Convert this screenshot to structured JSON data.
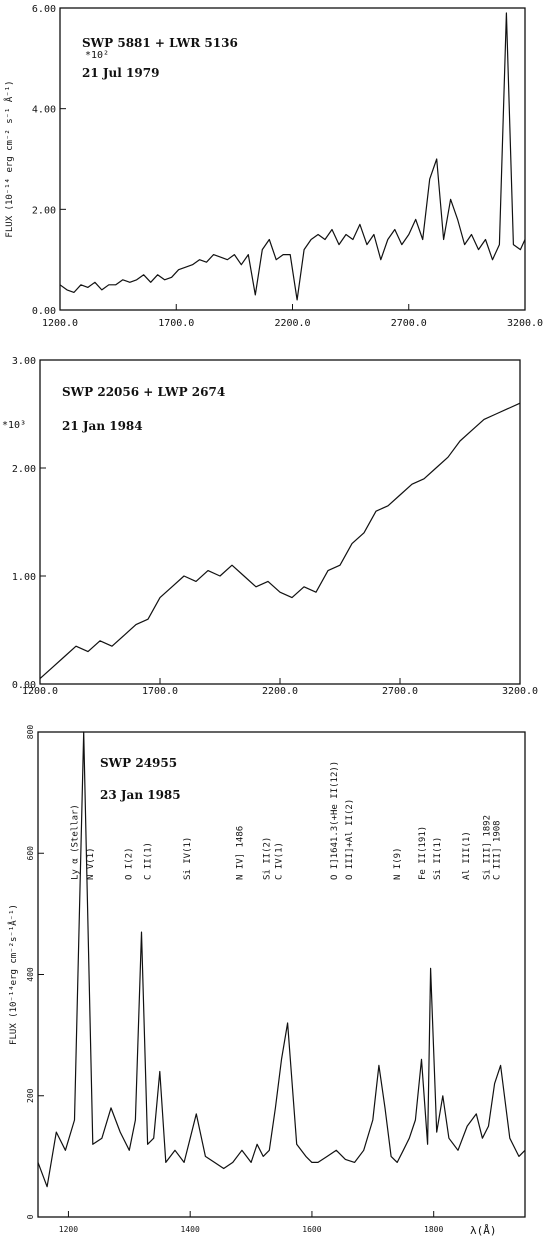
{
  "chart_data": [
    {
      "type": "line",
      "title": "SWP 5881 + LWR 5136",
      "subtitle": "21 Jul 1979",
      "ylabel": "FLUX (10⁻¹⁴ erg cm⁻² s⁻¹ Å⁻¹)",
      "yscale_label": "*10²",
      "xlabel": "",
      "xlim": [
        1200,
        3200
      ],
      "ylim": [
        0,
        6.0
      ],
      "xticks": [
        "1200.0",
        "1700.0",
        "2200.0",
        "2700.0",
        "3200.0"
      ],
      "yticks": [
        "0.00",
        "2.00",
        "4.00",
        "6.00"
      ],
      "x": [
        1200,
        1230,
        1260,
        1290,
        1320,
        1350,
        1380,
        1410,
        1440,
        1470,
        1500,
        1530,
        1560,
        1590,
        1620,
        1650,
        1680,
        1710,
        1740,
        1770,
        1800,
        1830,
        1860,
        1890,
        1920,
        1950,
        1980,
        2010,
        2040,
        2070,
        2100,
        2130,
        2160,
        2190,
        2220,
        2250,
        2280,
        2310,
        2340,
        2370,
        2400,
        2430,
        2460,
        2490,
        2520,
        2550,
        2580,
        2610,
        2640,
        2670,
        2700,
        2730,
        2760,
        2790,
        2820,
        2850,
        2880,
        2910,
        2940,
        2970,
        3000,
        3030,
        3060,
        3090,
        3120,
        3150,
        3180,
        3200
      ],
      "series": [
        {
          "values": [
            0.5,
            0.4,
            0.35,
            0.5,
            0.45,
            0.55,
            0.4,
            0.5,
            0.5,
            0.6,
            0.55,
            0.6,
            0.7,
            0.55,
            0.7,
            0.6,
            0.65,
            0.8,
            0.85,
            0.9,
            1.0,
            0.95,
            1.1,
            1.05,
            1.0,
            1.1,
            0.9,
            1.1,
            0.3,
            1.2,
            1.4,
            1.0,
            1.1,
            1.1,
            0.2,
            1.2,
            1.4,
            1.5,
            1.4,
            1.6,
            1.3,
            1.5,
            1.4,
            1.7,
            1.3,
            1.5,
            1.0,
            1.4,
            1.6,
            1.3,
            1.5,
            1.8,
            1.4,
            2.6,
            3.0,
            1.4,
            2.2,
            1.8,
            1.3,
            1.5,
            1.2,
            1.4,
            1.0,
            1.3,
            5.9,
            1.3,
            1.2,
            1.4
          ]
        }
      ],
      "grid": false
    },
    {
      "type": "line",
      "title": "SWP 22056 + LWP 2674",
      "subtitle": "21 Jan 1984",
      "ylabel": "",
      "yscale_label": "*10³",
      "xlabel": "",
      "xlim": [
        1200,
        3200
      ],
      "ylim": [
        0,
        3.0
      ],
      "xticks": [
        "1200.0",
        "1700.0",
        "2200.0",
        "2700.0",
        "3200.0"
      ],
      "yticks": [
        "0.00",
        "1.00",
        "2.00",
        "3.00"
      ],
      "x": [
        1200,
        1250,
        1300,
        1350,
        1400,
        1450,
        1500,
        1550,
        1600,
        1650,
        1700,
        1750,
        1800,
        1850,
        1900,
        1950,
        2000,
        2050,
        2100,
        2150,
        2200,
        2250,
        2300,
        2350,
        2400,
        2450,
        2500,
        2550,
        2600,
        2650,
        2700,
        2750,
        2800,
        2850,
        2900,
        2950,
        3000,
        3050,
        3100,
        3150,
        3200
      ],
      "series": [
        {
          "values": [
            0.05,
            0.15,
            0.25,
            0.35,
            0.3,
            0.4,
            0.35,
            0.45,
            0.55,
            0.6,
            0.8,
            0.9,
            1.0,
            0.95,
            1.05,
            1.0,
            1.1,
            1.0,
            0.9,
            0.95,
            0.85,
            0.8,
            0.9,
            0.85,
            1.05,
            1.1,
            1.3,
            1.4,
            1.6,
            1.65,
            1.75,
            1.85,
            1.9,
            2.0,
            2.1,
            2.25,
            2.35,
            2.45,
            2.5,
            2.55,
            2.6
          ]
        }
      ],
      "grid": false
    },
    {
      "type": "line",
      "title": "SWP 24955",
      "subtitle": "23 Jan 1985",
      "ylabel": "FLUX (10⁻¹⁴erg cm⁻²s⁻¹Å⁻¹)",
      "xlabel": "λ(Å)",
      "xlim": [
        1150,
        1950
      ],
      "ylim": [
        0,
        800
      ],
      "xticks": [
        "1200",
        "1400",
        "1600",
        "1800"
      ],
      "yticks": [
        "0",
        "200",
        "400",
        "600",
        "800"
      ],
      "x": [
        1150,
        1165,
        1180,
        1195,
        1210,
        1225,
        1240,
        1255,
        1270,
        1285,
        1300,
        1310,
        1320,
        1330,
        1340,
        1350,
        1360,
        1375,
        1390,
        1400,
        1410,
        1425,
        1440,
        1455,
        1470,
        1485,
        1500,
        1510,
        1520,
        1530,
        1540,
        1550,
        1560,
        1575,
        1590,
        1600,
        1610,
        1625,
        1640,
        1655,
        1670,
        1685,
        1700,
        1710,
        1720,
        1730,
        1740,
        1750,
        1760,
        1770,
        1780,
        1790,
        1795,
        1805,
        1815,
        1825,
        1840,
        1855,
        1870,
        1880,
        1890,
        1900,
        1910,
        1925,
        1940,
        1950
      ],
      "series": [
        {
          "values": [
            90,
            50,
            140,
            110,
            160,
            820,
            120,
            130,
            180,
            140,
            110,
            160,
            470,
            120,
            130,
            240,
            90,
            110,
            90,
            130,
            170,
            100,
            90,
            80,
            90,
            110,
            90,
            120,
            100,
            110,
            180,
            260,
            320,
            120,
            100,
            90,
            90,
            100,
            110,
            95,
            90,
            110,
            160,
            250,
            180,
            100,
            90,
            110,
            130,
            160,
            260,
            120,
            410,
            140,
            200,
            130,
            110,
            150,
            170,
            130,
            150,
            220,
            250,
            130,
            100,
            110
          ]
        }
      ],
      "annotations": [
        {
          "text": "Ly α (Stellar)",
          "x": 1215
        },
        {
          "text": "N V(1)",
          "x": 1240
        },
        {
          "text": "O I(2)",
          "x": 1304
        },
        {
          "text": "C II(1)",
          "x": 1335
        },
        {
          "text": "Si IV(1)",
          "x": 1400
        },
        {
          "text": "N IV] 1486",
          "x": 1486
        },
        {
          "text": "Si II(2)",
          "x": 1530
        },
        {
          "text": "C IV(1)",
          "x": 1550
        },
        {
          "text": "O I]1641.3(+He II(12))",
          "x": 1641
        },
        {
          "text": "O III]+Al II(2)",
          "x": 1666
        },
        {
          "text": "N I(9)",
          "x": 1745
        },
        {
          "text": "Fe II(191)",
          "x": 1786
        },
        {
          "text": "Si II(1)",
          "x": 1810
        },
        {
          "text": "Al III(1)",
          "x": 1858
        },
        {
          "text": "Si III] 1892",
          "x": 1892
        },
        {
          "text": "C III] 1908",
          "x": 1908
        }
      ],
      "grid": false
    }
  ]
}
